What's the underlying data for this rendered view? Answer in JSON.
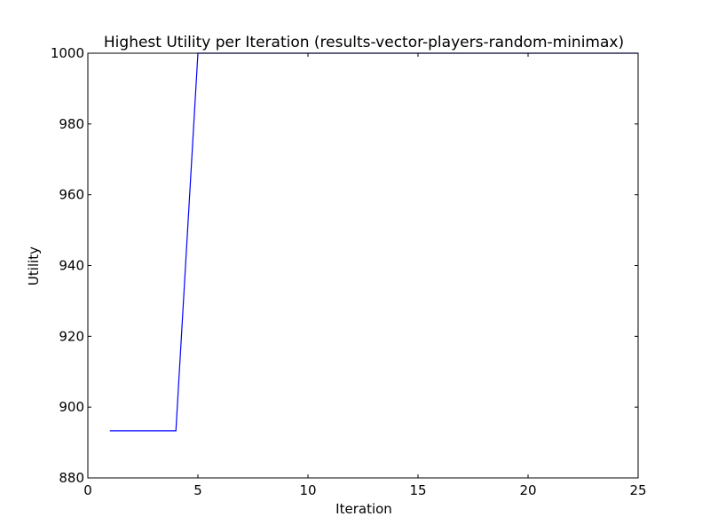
{
  "chart_data": {
    "type": "line",
    "title": "Highest Utility per Iteration (results-vector-players-random-minimax)",
    "xlabel": "Iteration",
    "ylabel": "Utility",
    "xlim": [
      0,
      25
    ],
    "ylim": [
      880,
      1000
    ],
    "xticks": [
      0,
      5,
      10,
      15,
      20,
      25
    ],
    "yticks": [
      880,
      900,
      920,
      940,
      960,
      980,
      1000
    ],
    "grid": false,
    "series": [
      {
        "color": "#0000ff",
        "x": [
          1,
          2,
          3,
          4,
          5,
          6,
          7,
          8,
          9,
          10,
          11,
          12,
          13,
          14,
          15,
          16,
          17,
          18,
          19,
          20,
          21,
          22,
          23,
          24,
          25
        ],
        "y": [
          893.3,
          893.3,
          893.3,
          893.3,
          1000,
          1000,
          1000,
          1000,
          1000,
          1000,
          1000,
          1000,
          1000,
          1000,
          1000,
          1000,
          1000,
          1000,
          1000,
          1000,
          1000,
          1000,
          1000,
          1000,
          1000
        ]
      }
    ]
  }
}
